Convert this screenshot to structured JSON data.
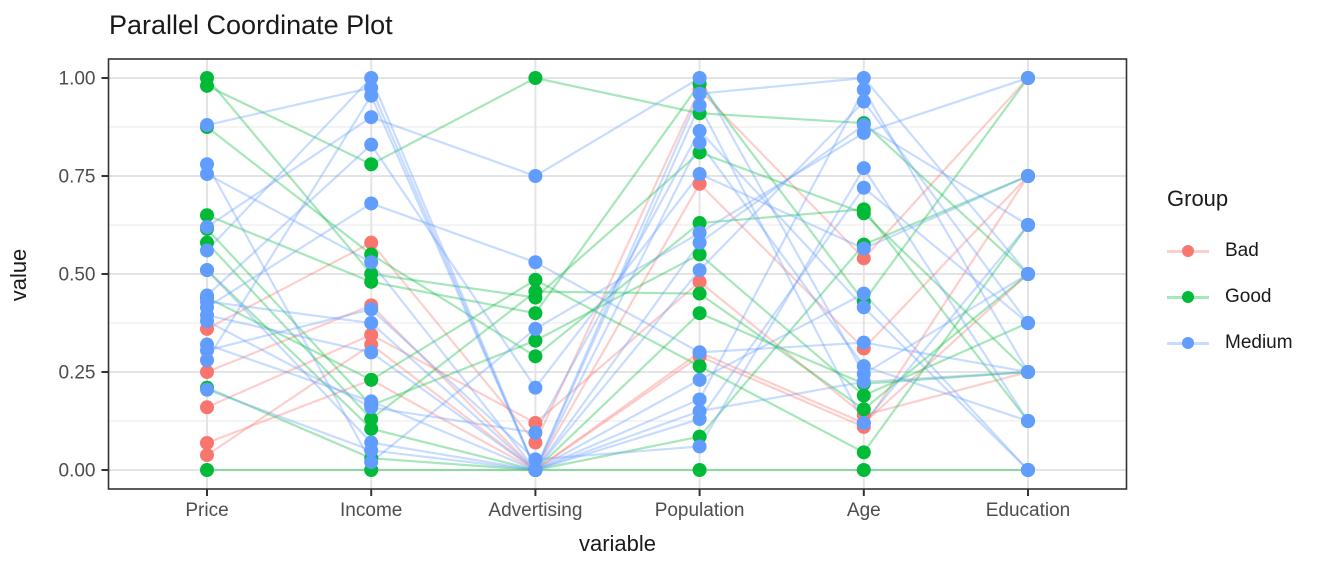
{
  "title": "Parallel Coordinate Plot",
  "x_axis": {
    "title": "variable",
    "categories": [
      "Price",
      "Income",
      "Advertising",
      "Population",
      "Age",
      "Education"
    ]
  },
  "y_axis": {
    "title": "value",
    "tick_labels": [
      "0.00",
      "0.25",
      "0.50",
      "0.75",
      "1.00"
    ],
    "tick_values": [
      0,
      0.25,
      0.5,
      0.75,
      1
    ]
  },
  "legend": {
    "title": "Group",
    "entries": [
      {
        "label": "Bad",
        "color": "#F8766D"
      },
      {
        "label": "Good",
        "color": "#00BA38"
      },
      {
        "label": "Medium",
        "color": "#619CFF"
      }
    ]
  },
  "chart_data": {
    "type": "line",
    "chart_kind": "parallel-coordinates",
    "title": "Parallel Coordinate Plot",
    "xlabel": "variable",
    "ylabel": "value",
    "categories": [
      "Price",
      "Income",
      "Advertising",
      "Population",
      "Age",
      "Education"
    ],
    "ylim": [
      0,
      1
    ],
    "y_major_ticks": [
      0,
      0.25,
      0.5,
      0.75,
      1
    ],
    "y_minor_ticks": [
      0.125,
      0.375,
      0.625,
      0.875
    ],
    "grid": true,
    "legend_position": "right",
    "line_alpha": 0.35,
    "point_radius": 7,
    "groups": [
      {
        "name": "Bad",
        "color": "#F8766D"
      },
      {
        "name": "Good",
        "color": "#00BA38"
      },
      {
        "name": "Medium",
        "color": "#619CFF"
      }
    ],
    "rows": [
      {
        "group": "Bad",
        "values": [
          0.36,
          0.58,
          0.07,
          0.97,
          0.54,
          1.0
        ]
      },
      {
        "group": "Bad",
        "values": [
          0.25,
          0.42,
          0.0,
          0.73,
          0.31,
          0.75
        ]
      },
      {
        "group": "Bad",
        "values": [
          0.16,
          0.345,
          0.12,
          0.48,
          0.14,
          0.25
        ]
      },
      {
        "group": "Bad",
        "values": [
          0.069,
          0.23,
          0.0,
          0.3,
          0.12,
          0.5
        ]
      },
      {
        "group": "Bad",
        "values": [
          0.038,
          0.32,
          0.0,
          0.29,
          0.11,
          0.75
        ]
      },
      {
        "group": "Good",
        "values": [
          1.0,
          0.5,
          0.44,
          0.81,
          0.655,
          0.25
        ]
      },
      {
        "group": "Good",
        "values": [
          0.98,
          0.78,
          1.0,
          0.91,
          0.885,
          0.5
        ]
      },
      {
        "group": "Good",
        "values": [
          0.875,
          0.55,
          0.29,
          0.63,
          0.665,
          0.125
        ]
      },
      {
        "group": "Good",
        "values": [
          0.65,
          0.48,
          0.4,
          0.985,
          0.43,
          1.0
        ]
      },
      {
        "group": "Good",
        "values": [
          0.615,
          0.165,
          0.33,
          0.55,
          0.19,
          0.375
        ]
      },
      {
        "group": "Good",
        "values": [
          0.58,
          0.13,
          0.455,
          0.45,
          0.155,
          0.5
        ]
      },
      {
        "group": "Good",
        "values": [
          0.51,
          0.105,
          0.0,
          0.4,
          0.22,
          0.25
        ]
      },
      {
        "group": "Good",
        "values": [
          0.44,
          0.23,
          0.485,
          0.265,
          0.045,
          0.625
        ]
      },
      {
        "group": "Good",
        "values": [
          0.21,
          0.03,
          0.0,
          0.085,
          0.575,
          0.75
        ]
      },
      {
        "group": "Good",
        "values": [
          0.0,
          0.0,
          0.0,
          0.0,
          0.0,
          0.0
        ]
      },
      {
        "group": "Medium",
        "values": [
          0.88,
          0.975,
          0.0,
          0.93,
          0.12,
          0.625
        ]
      },
      {
        "group": "Medium",
        "values": [
          0.78,
          0.02,
          0.36,
          0.605,
          0.86,
          1.0
        ]
      },
      {
        "group": "Medium",
        "values": [
          0.755,
          0.53,
          0.0,
          0.18,
          0.97,
          0.25
        ]
      },
      {
        "group": "Medium",
        "values": [
          0.62,
          0.9,
          0.75,
          1.0,
          0.245,
          0.5
        ]
      },
      {
        "group": "Medium",
        "values": [
          0.56,
          1.0,
          0.0,
          0.13,
          0.72,
          0.375
        ]
      },
      {
        "group": "Medium",
        "values": [
          0.51,
          0.07,
          0.0,
          0.835,
          0.265,
          0.125
        ]
      },
      {
        "group": "Medium",
        "values": [
          0.445,
          0.83,
          0.21,
          0.755,
          0.565,
          0.75
        ]
      },
      {
        "group": "Medium",
        "values": [
          0.43,
          0.375,
          0.0,
          0.96,
          1.0,
          0.5
        ]
      },
      {
        "group": "Medium",
        "values": [
          0.415,
          0.68,
          0.53,
          0.3,
          0.325,
          0.25
        ]
      },
      {
        "group": "Medium",
        "values": [
          0.395,
          0.3,
          0.0,
          0.58,
          0.88,
          0.625
        ]
      },
      {
        "group": "Medium",
        "values": [
          0.38,
          0.16,
          0.095,
          0.865,
          0.415,
          0.0
        ]
      },
      {
        "group": "Medium",
        "values": [
          0.32,
          0.175,
          0.0,
          0.51,
          0.94,
          0.375
        ]
      },
      {
        "group": "Medium",
        "values": [
          0.305,
          0.41,
          0.027,
          0.06,
          0.77,
          0.125
        ]
      },
      {
        "group": "Medium",
        "values": [
          0.28,
          0.955,
          0.0,
          0.23,
          0.45,
          0.0
        ]
      },
      {
        "group": "Medium",
        "values": [
          0.205,
          0.05,
          0.0,
          0.15,
          0.225,
          0.25
        ]
      }
    ]
  }
}
